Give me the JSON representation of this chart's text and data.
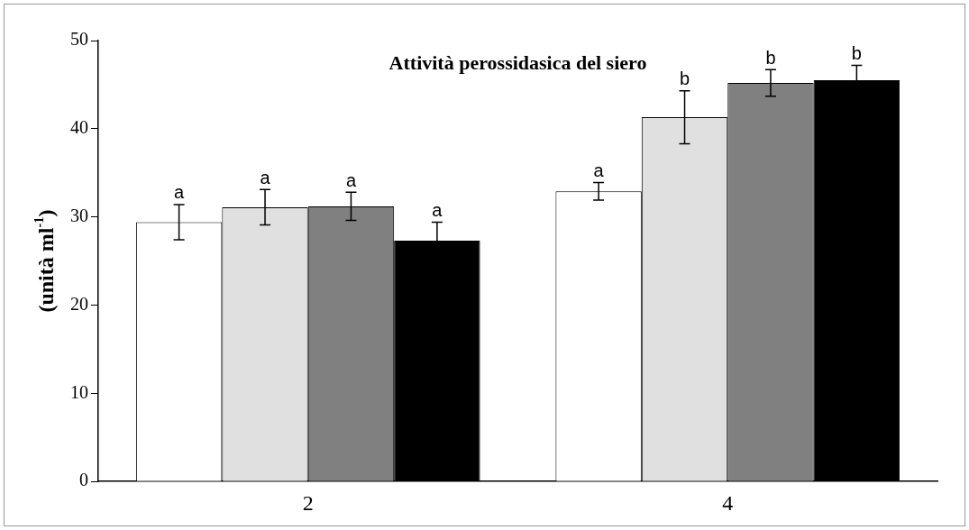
{
  "chart_data": {
    "type": "bar",
    "title": "Attività perossidasica del siero",
    "ylabel": "(unità ml$^{-1}$)",
    "categories": [
      "2",
      "4"
    ],
    "ylim": [
      0,
      50
    ],
    "yticks": [
      0,
      10,
      20,
      30,
      40,
      50
    ],
    "grid": false,
    "legend": false,
    "series": [
      {
        "color": "#ffffff",
        "values": [
          29.4,
          32.9
        ],
        "errors": [
          2.0,
          1.0
        ],
        "value_labels": [
          "a",
          "a"
        ]
      },
      {
        "color": "#e0e0e0",
        "values": [
          31.1,
          41.3
        ],
        "errors": [
          2.0,
          3.0
        ],
        "value_labels": [
          "a",
          "b"
        ]
      },
      {
        "color": "#808080",
        "values": [
          31.2,
          45.2
        ],
        "errors": [
          1.6,
          1.5
        ],
        "value_labels": [
          "a",
          "b"
        ]
      },
      {
        "color": "#000000",
        "values": [
          27.3,
          45.5
        ],
        "errors": [
          2.1,
          1.7
        ],
        "value_labels": [
          "a",
          "b"
        ]
      }
    ]
  }
}
